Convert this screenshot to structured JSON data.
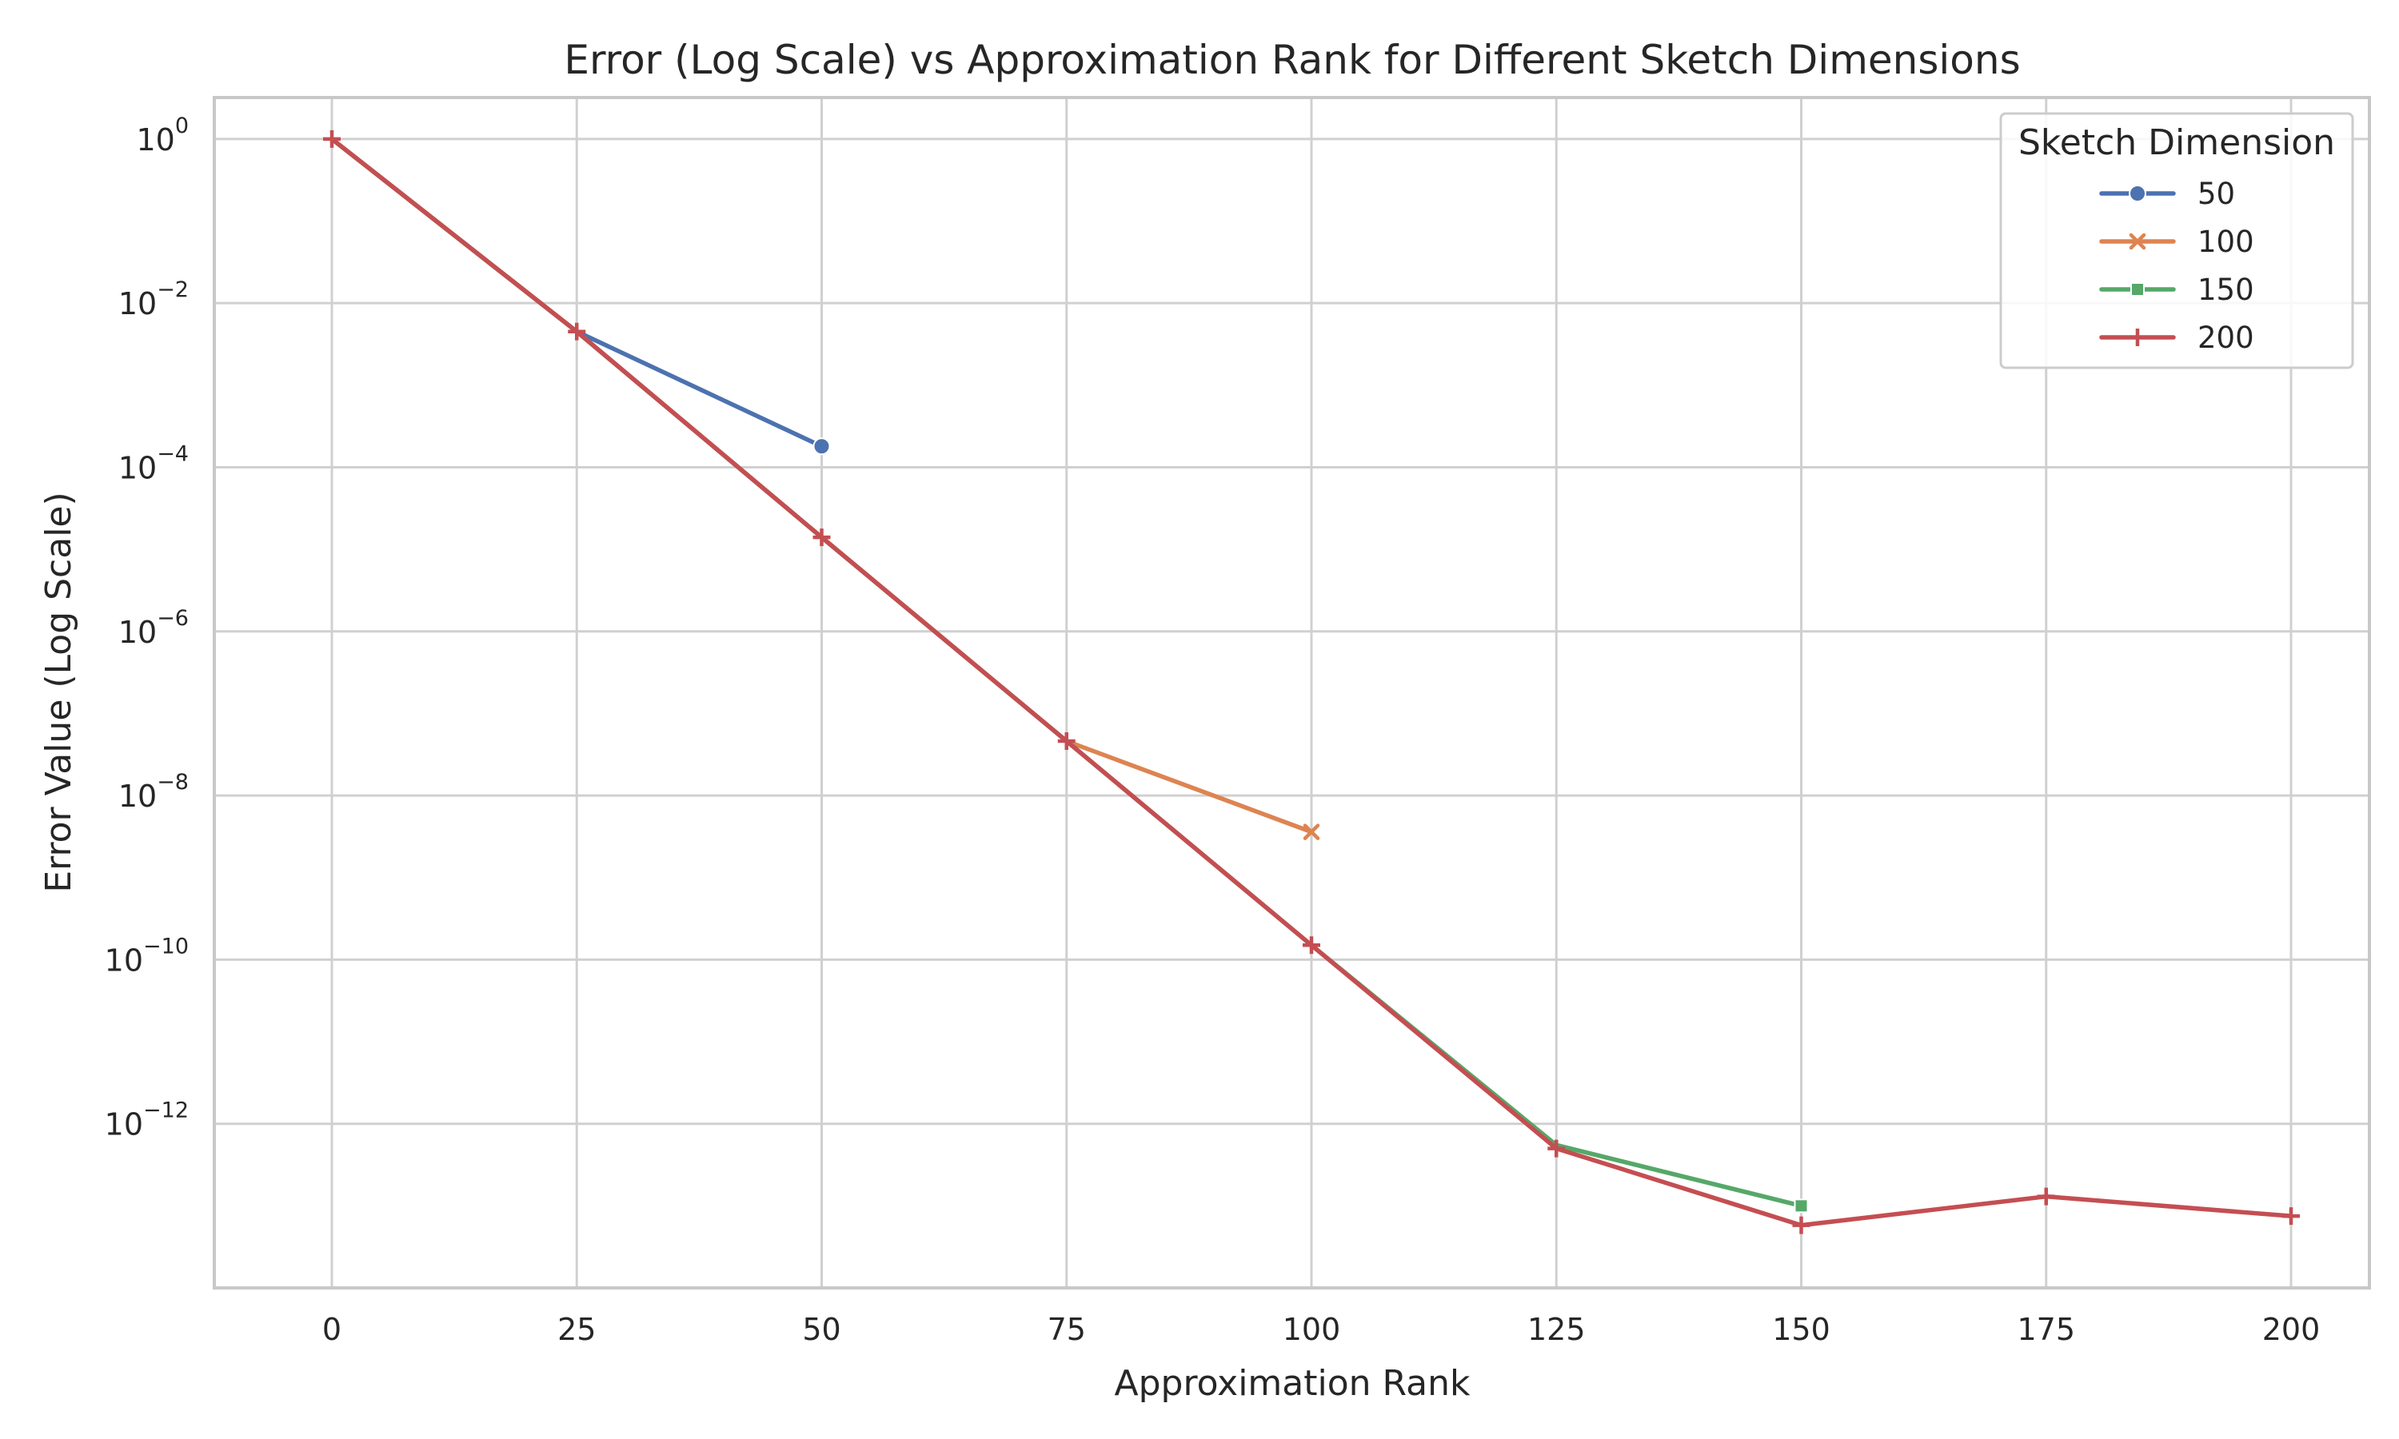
{
  "chart_data": {
    "type": "line",
    "title": "Error (Log Scale) vs Approximation Rank for Different Sketch Dimensions",
    "xlabel": "Approximation Rank",
    "ylabel": "Error Value (Log Scale)",
    "yscale": "log",
    "xlim": [
      -12,
      208
    ],
    "ylim": [
      1e-14,
      3.2
    ],
    "x_ticks": [
      0,
      25,
      50,
      75,
      100,
      125,
      150,
      175,
      200
    ],
    "y_ticks": [
      {
        "value": 1,
        "base": "10",
        "exp": "0"
      },
      {
        "value": 0.01,
        "base": "10",
        "exp": "−2"
      },
      {
        "value": 0.0001,
        "base": "10",
        "exp": "−4"
      },
      {
        "value": 1e-06,
        "base": "10",
        "exp": "−6"
      },
      {
        "value": 1e-08,
        "base": "10",
        "exp": "−8"
      },
      {
        "value": 1e-10,
        "base": "10",
        "exp": "−10"
      },
      {
        "value": 1e-12,
        "base": "10",
        "exp": "−12"
      }
    ],
    "grid": true,
    "legend": {
      "title": "Sketch Dimension",
      "position": "top-right"
    },
    "series": [
      {
        "name": "50",
        "color": "#4c72b0",
        "marker": "circle",
        "x": [
          0,
          25,
          50
        ],
        "y": [
          1,
          0.0045,
          0.00018
        ]
      },
      {
        "name": "100",
        "color": "#dd8452",
        "marker": "x",
        "x": [
          0,
          25,
          50,
          75,
          100
        ],
        "y": [
          1,
          0.0045,
          1.4e-05,
          4.6e-08,
          3.6e-09
        ]
      },
      {
        "name": "150",
        "color": "#55a868",
        "marker": "square",
        "x": [
          0,
          25,
          50,
          75,
          100,
          125,
          150
        ],
        "y": [
          1,
          0.0045,
          1.4e-05,
          4.6e-08,
          1.5e-10,
          5.5e-13,
          1e-13
        ]
      },
      {
        "name": "200",
        "color": "#c44e52",
        "marker": "plus",
        "x": [
          0,
          25,
          50,
          75,
          100,
          125,
          150,
          175,
          200
        ],
        "y": [
          1,
          0.0045,
          1.4e-05,
          4.6e-08,
          1.5e-10,
          5e-13,
          5.8e-14,
          1.3e-13,
          7.5e-14
        ]
      }
    ]
  }
}
